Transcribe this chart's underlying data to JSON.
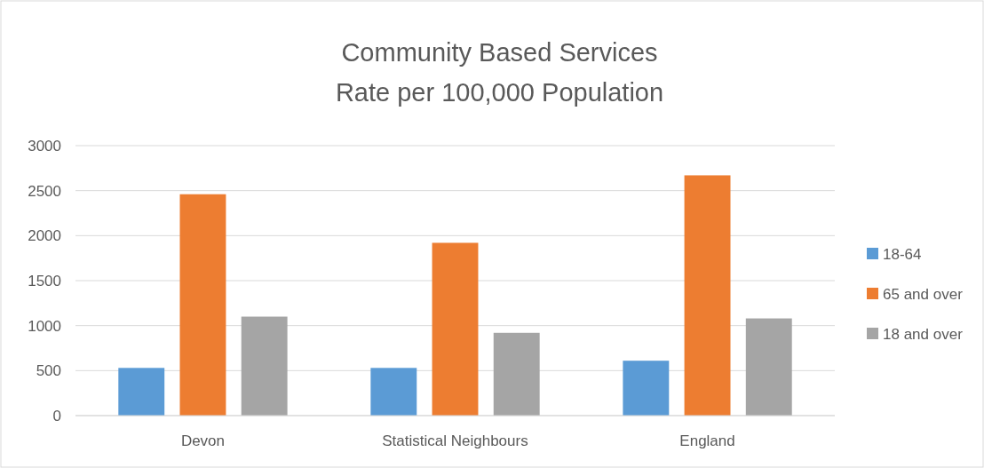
{
  "chart_data": {
    "type": "bar",
    "title": "Community Based Services\nRate per 100,000 Population",
    "categories": [
      "Devon",
      "Statistical Neighbours",
      "England"
    ],
    "series": [
      {
        "name": "18-64",
        "color": "#5b9bd5",
        "values": [
          530,
          530,
          610
        ]
      },
      {
        "name": "65 and over",
        "color": "#ed7d31",
        "values": [
          2460,
          1920,
          2670
        ]
      },
      {
        "name": "18 and over",
        "color": "#a5a5a5",
        "values": [
          1100,
          920,
          1080
        ]
      }
    ],
    "ylim": [
      0,
      3000
    ],
    "yticks": [
      0,
      500,
      1000,
      1500,
      2000,
      2500,
      3000
    ],
    "grid": "y",
    "legend": "right"
  }
}
